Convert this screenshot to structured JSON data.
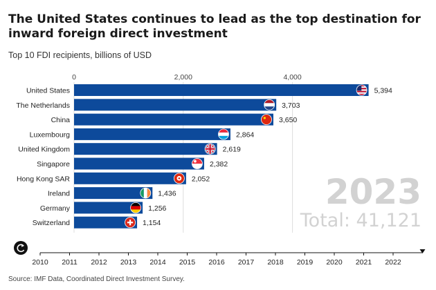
{
  "title": "The United States continues to lead as the top destination for inward foreign direct investment",
  "subtitle": "Top 10 FDI recipients, billions of USD",
  "source": "Source: IMF Data, Coordinated Direct Investment Survey.",
  "big_year": "2023",
  "total_label": "Total: 41,121",
  "colors": {
    "bar": "#0d4a9b",
    "grid": "#dddddd",
    "text": "#222222",
    "watermark": "#d2d2d2",
    "timeline": "#111111"
  },
  "controls": {
    "play_icon": "replay-icon"
  },
  "chart_data": {
    "type": "bar",
    "orientation": "horizontal",
    "title": "The United States continues to lead as the top destination for inward foreign direct investment",
    "subtitle": "Top 10 FDI recipients, billions of USD",
    "categories": [
      "United States",
      "The Netherlands",
      "China",
      "Luxembourg",
      "United Kingdom",
      "Singapore",
      "Hong Kong SAR",
      "Ireland",
      "Germany",
      "Switzerland"
    ],
    "values": [
      5394,
      3703,
      3650,
      2864,
      2619,
      2382,
      2052,
      1436,
      1256,
      1154
    ],
    "value_labels": [
      "5,394",
      "3,703",
      "3,650",
      "2,864",
      "2,619",
      "2,382",
      "2,052",
      "1,436",
      "1,256",
      "1,154"
    ],
    "flags": [
      "us-flag-icon",
      "netherlands-flag-icon",
      "china-flag-icon",
      "luxembourg-flag-icon",
      "uk-flag-icon",
      "singapore-flag-icon",
      "hong-kong-flag-icon",
      "ireland-flag-icon",
      "germany-flag-icon",
      "switzerland-flag-icon"
    ],
    "x_ticks": [
      0,
      2000,
      4000
    ],
    "x_tick_labels": [
      "0",
      "2,000",
      "4,000"
    ],
    "xlim": [
      0,
      5394
    ],
    "grid": true,
    "year": "2023",
    "timeline": {
      "years": [
        "2010",
        "2011",
        "2012",
        "2013",
        "2014",
        "2015",
        "2016",
        "2017",
        "2018",
        "2019",
        "2020",
        "2021",
        "2022"
      ],
      "current": "2023"
    }
  }
}
